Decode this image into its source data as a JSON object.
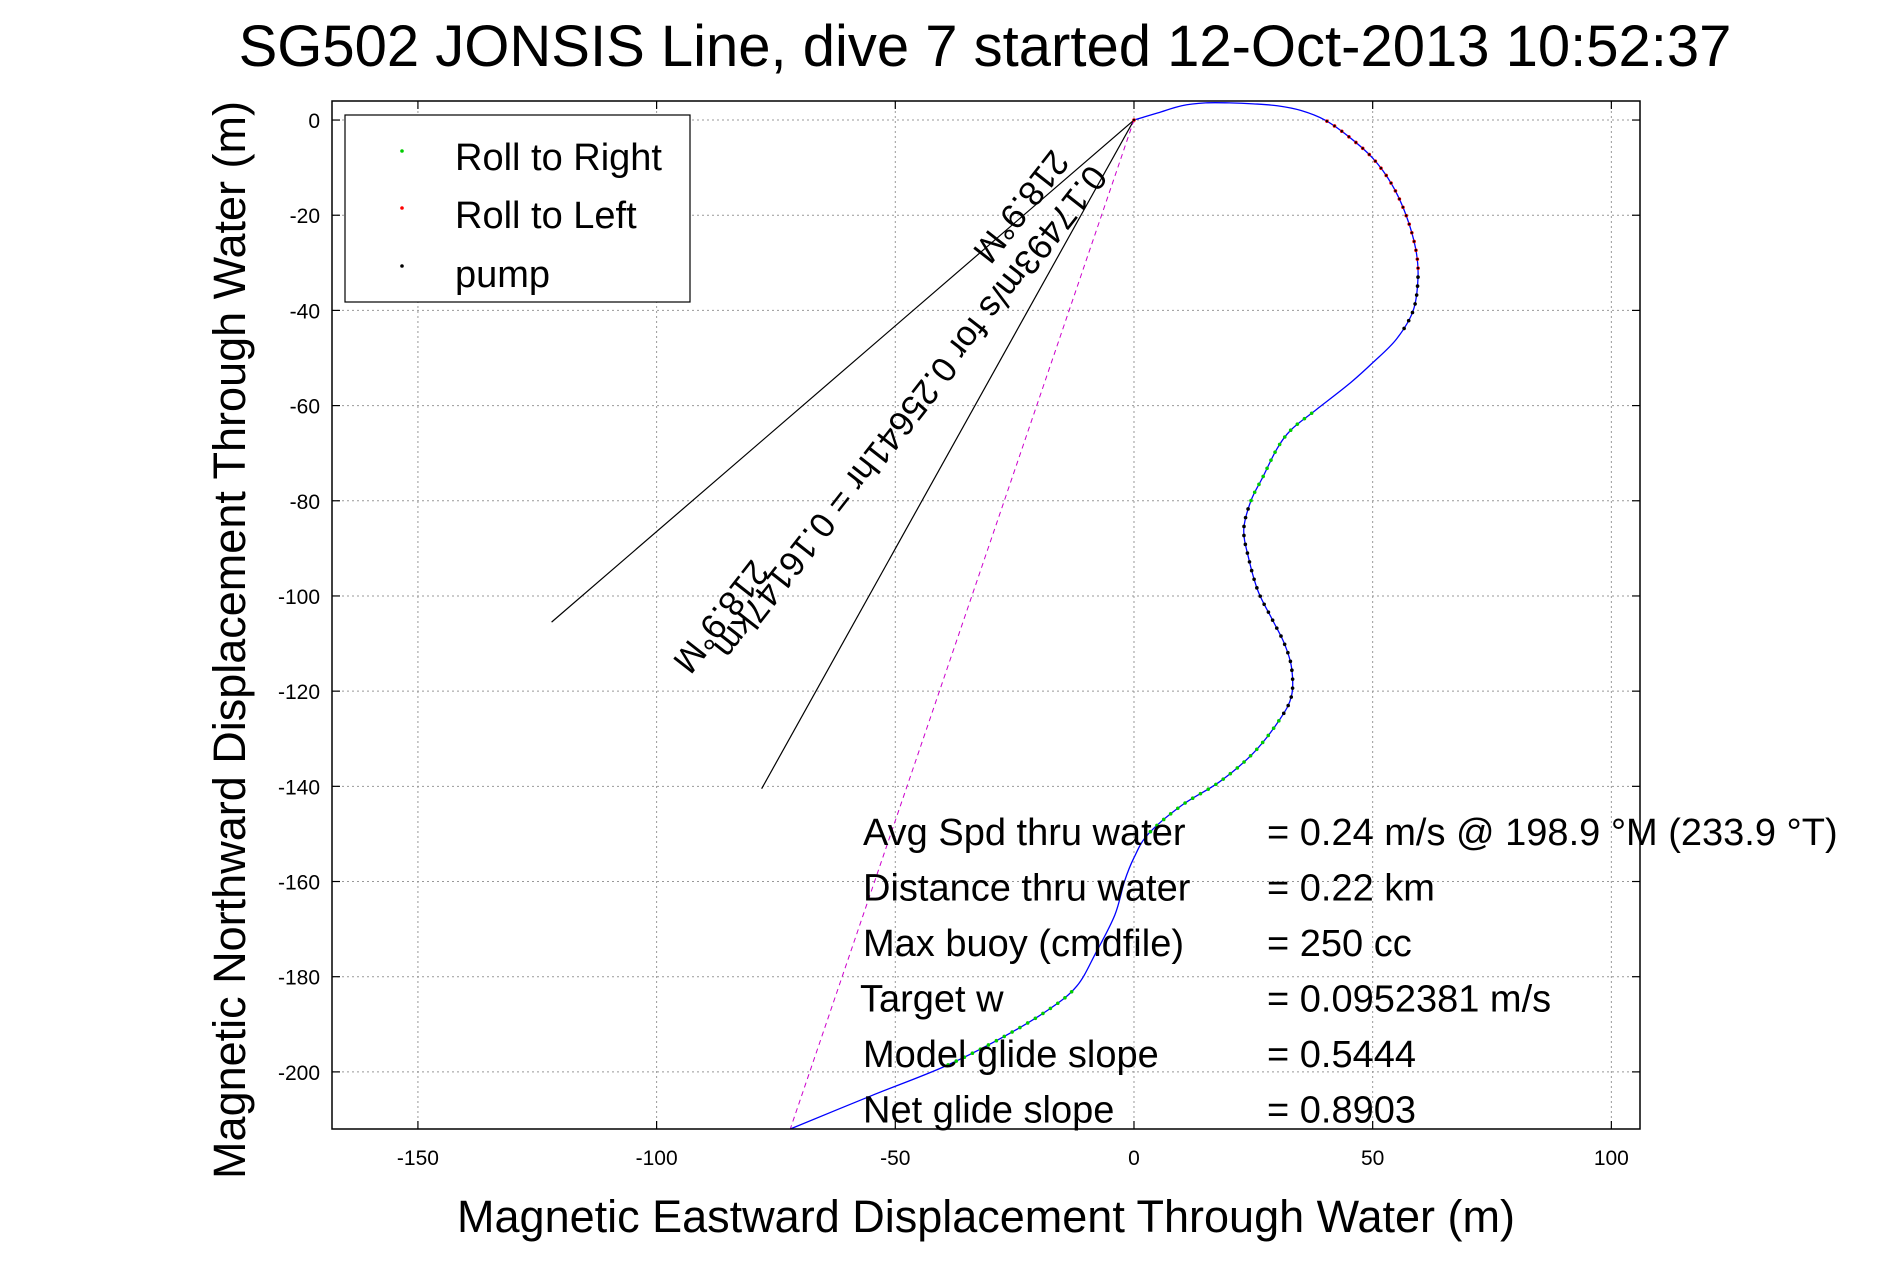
{
  "chart_data": {
    "type": "line",
    "title": "SG502 JONSIS Line, dive 7 started 12-Oct-2013 10:52:37",
    "xlabel": "Magnetic Eastward Displacement Through Water (m)",
    "ylabel": "Magnetic Northward Displacement Through Water (m)",
    "xlim": [
      -168,
      106
    ],
    "ylim": [
      -212,
      4
    ],
    "xticks": [
      -150,
      -100,
      -50,
      0,
      50,
      100
    ],
    "yticks": [
      0,
      -20,
      -40,
      -60,
      -80,
      -100,
      -120,
      -140,
      -160,
      -180,
      -200
    ],
    "grid": true,
    "legend": {
      "placement": "top-left",
      "entries": [
        {
          "label": "Roll to Right",
          "color": "#00cc00"
        },
        {
          "label": "Roll to Left",
          "color": "#ff0000"
        },
        {
          "label": "pump",
          "color": "#000000"
        }
      ]
    },
    "track": {
      "name": "track",
      "color": "#0000ff",
      "points": [
        [
          0,
          0
        ],
        [
          5,
          1.5
        ],
        [
          10,
          3
        ],
        [
          15,
          3.6
        ],
        [
          20,
          3.6
        ],
        [
          25,
          3.4
        ],
        [
          30,
          3
        ],
        [
          35,
          2
        ],
        [
          40,
          0
        ],
        [
          45,
          -3.5
        ],
        [
          50,
          -8
        ],
        [
          54,
          -13.5
        ],
        [
          57,
          -20
        ],
        [
          59,
          -27
        ],
        [
          59.5,
          -33
        ],
        [
          58.5,
          -40
        ],
        [
          55,
          -46
        ],
        [
          50,
          -51
        ],
        [
          45,
          -55.5
        ],
        [
          38,
          -61
        ],
        [
          33,
          -65
        ],
        [
          30,
          -69
        ],
        [
          27,
          -75
        ],
        [
          24.5,
          -80
        ],
        [
          23,
          -86
        ],
        [
          24,
          -92
        ],
        [
          26,
          -99
        ],
        [
          29,
          -105
        ],
        [
          31.5,
          -110
        ],
        [
          33,
          -115
        ],
        [
          33,
          -121
        ],
        [
          30.5,
          -126
        ],
        [
          25,
          -133
        ],
        [
          18,
          -139
        ],
        [
          10,
          -144
        ],
        [
          3,
          -150
        ],
        [
          0,
          -155
        ],
        [
          -2,
          -160
        ],
        [
          -4,
          -167
        ],
        [
          -8,
          -175
        ],
        [
          -12,
          -182
        ],
        [
          -18,
          -187
        ],
        [
          -28,
          -193
        ],
        [
          -40,
          -199
        ],
        [
          -55,
          -205
        ],
        [
          -72,
          -212
        ]
      ],
      "roll_to_right_range": [
        [
          38,
          -61
        ],
        [
          24.5,
          -80
        ]
      ],
      "roll_to_right_range_2": [
        [
          30.5,
          -126
        ],
        [
          3,
          -150
        ]
      ],
      "roll_to_right_range_3": [
        [
          -12,
          -182
        ],
        [
          -40,
          -199
        ]
      ],
      "roll_to_left_range": [
        [
          0,
          0
        ],
        [
          59.5,
          -33
        ]
      ],
      "pump_range": [
        [
          23,
          -86
        ],
        [
          30.5,
          -126
        ]
      ]
    },
    "current_lines": {
      "color": "#000000",
      "line1_end": [
        -122,
        -105.5
      ],
      "line2_end": [
        -78,
        -140.5
      ],
      "dashed_end": [
        -72,
        -212
      ]
    },
    "rotated_labels": {
      "label1": "0.17493m/s for 0.25641hr = 0.16147km",
      "label2": "218.9°M",
      "label3": "218.9°M"
    },
    "annotations": [
      {
        "label": "Avg Spd thru water",
        "value": "=  0.24 m/s @ 198.9 °M (233.9 °T)"
      },
      {
        "label": "Distance thru water",
        "value": "=  0.22 km"
      },
      {
        "label": "Max buoy (cmdfile)",
        "value": "= 250 cc"
      },
      {
        "label": "Target w",
        "value": "= 0.0952381 m/s"
      },
      {
        "label": "Model glide slope",
        "value": "= 0.5444"
      },
      {
        "label": "Net glide slope",
        "value": "= 0.8903"
      }
    ]
  }
}
